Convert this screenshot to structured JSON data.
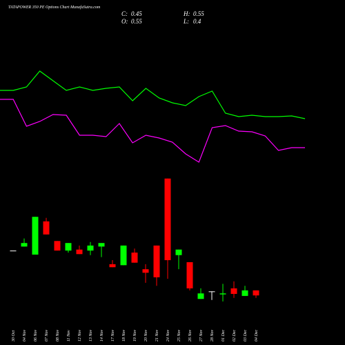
{
  "chart_data": [
    {
      "type": "candlestick",
      "title": "TATAPOWER 350 PE Options Chart MunafaSutra.com",
      "summary": [
        {
          "label": "C:",
          "value": 0.45
        },
        {
          "label": "H:",
          "value": 0.55
        },
        {
          "label": "O:",
          "value": 0.55
        },
        {
          "label": "L:",
          "value": 0.4
        }
      ],
      "categories": [
        "30 Oct",
        "04 Nov",
        "06 Nov",
        "07 Nov",
        "08 Nov",
        "11 Nov",
        "12 Nov",
        "13 Nov",
        "14 Nov",
        "17 Nov",
        "18 Nov",
        "19 Nov",
        "20 Nov",
        "21 Nov",
        "24 Nov",
        "25 Nov",
        "26 Nov",
        "27 Nov",
        "28 Nov",
        "01 Dec",
        "02 Dec",
        "03 Dec",
        "04 Dec"
      ],
      "open": [
        1.34,
        1.42,
        1.26,
        1.92,
        1.53,
        1.34,
        1.36,
        1.34,
        1.42,
        1.07,
        1.05,
        1.3,
        0.97,
        1.44,
        2.77,
        1.25,
        1.11,
        0.38,
        0.53,
        0.47,
        0.59,
        0.44,
        0.55
      ],
      "high": [
        1.34,
        1.58,
        2.01,
        1.99,
        1.53,
        1.49,
        1.44,
        1.51,
        1.49,
        1.15,
        1.44,
        1.38,
        1.07,
        1.44,
        2.77,
        1.36,
        1.11,
        0.59,
        0.53,
        0.68,
        0.73,
        0.64,
        0.55
      ],
      "low": [
        1.34,
        1.42,
        1.26,
        1.66,
        1.34,
        1.3,
        1.27,
        1.25,
        1.21,
        1.01,
        1.05,
        1.1,
        0.7,
        0.64,
        0.78,
        0.97,
        0.55,
        0.38,
        0.36,
        0.33,
        0.4,
        0.44,
        0.4
      ],
      "close": [
        1.34,
        1.49,
        2.01,
        1.66,
        1.34,
        1.49,
        1.27,
        1.44,
        1.49,
        1.01,
        1.44,
        1.1,
        0.9,
        0.81,
        1.15,
        1.36,
        0.59,
        0.49,
        0.53,
        0.49,
        0.48,
        0.55,
        0.45
      ],
      "ylim": [
        0,
        2.89
      ],
      "up_color": "#00ff00",
      "down_color": "#ff0000",
      "flat_color": "#ffffff"
    },
    {
      "type": "line",
      "categories": [
        null,
        null,
        null,
        null,
        null,
        null,
        null,
        null,
        null,
        null,
        null,
        null,
        null,
        null,
        null,
        null,
        null,
        null,
        null,
        null,
        null,
        null,
        null,
        null
      ],
      "ylim": [
        0,
        100
      ],
      "series": [
        {
          "color": "#00ff00",
          "values": [
            59.5,
            59.5,
            62,
            73.5,
            66.5,
            59.5,
            62,
            59.5,
            61,
            62,
            52,
            61,
            54,
            50.5,
            48.5,
            55,
            59,
            43,
            40.5,
            41.5,
            40.5,
            40.5,
            41,
            39
          ]
        },
        {
          "color": "#ff00ff",
          "values": [
            53,
            53,
            33.5,
            37,
            42,
            41.5,
            27,
            27,
            26,
            35.5,
            21.5,
            27,
            25,
            22,
            13.5,
            7.5,
            32.5,
            34,
            30,
            29.5,
            26.5,
            16,
            18,
            18
          ]
        }
      ]
    }
  ]
}
